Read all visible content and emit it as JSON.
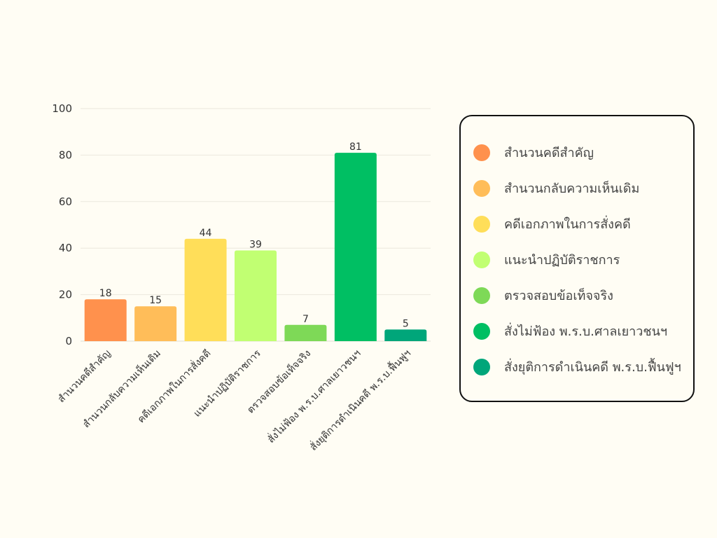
{
  "chart_data": {
    "type": "bar",
    "categories": [
      "สำนวนคดีสำคัญ",
      "สำนวนกลับความเห็นเดิม",
      "คดีเอกภาพในการสั่งคดี",
      "แนะนำปฏิบัติราชการ",
      "ตรวจสอบข้อเท็จจริง",
      "สั่งไม่ฟ้อง พ.ร.บ.ศาลเยาวชนฯ",
      "สั่งยุติการดำเนินคดี พ.ร.บ.ฟื้นฟูฯ"
    ],
    "values": [
      18,
      15,
      44,
      39,
      7,
      81,
      5
    ],
    "colors": [
      "#ff914d",
      "#ffbd59",
      "#ffde59",
      "#c1ff72",
      "#7ed957",
      "#00bf63",
      "#00a67a"
    ],
    "ylim": [
      0,
      100
    ],
    "yticks": [
      0,
      20,
      40,
      60,
      80,
      100
    ],
    "grid": true,
    "legend_position": "right",
    "title": "",
    "xlabel": "",
    "ylabel": ""
  }
}
